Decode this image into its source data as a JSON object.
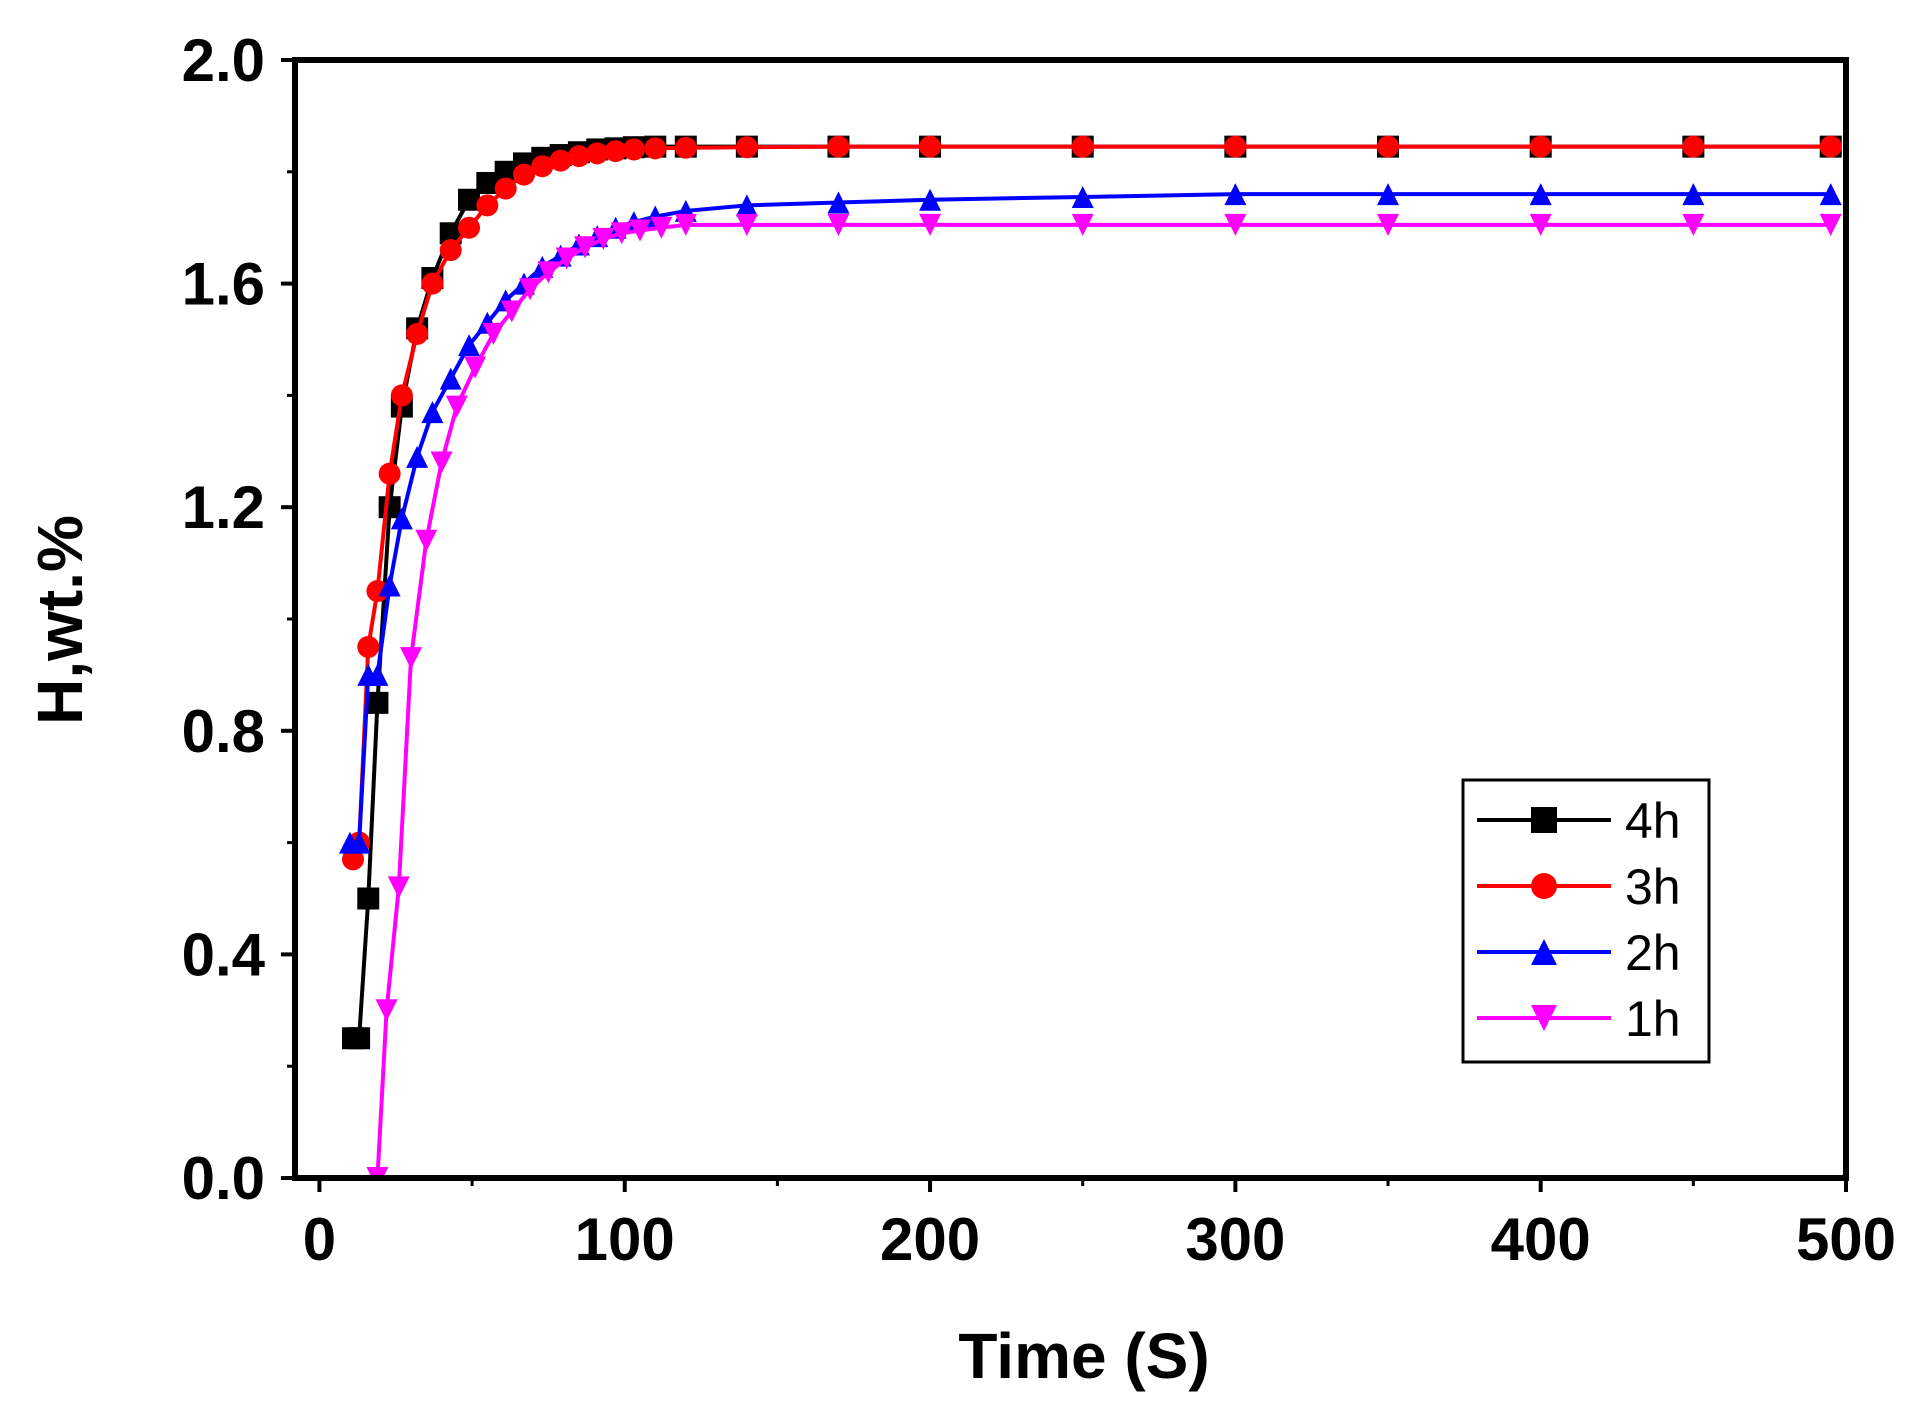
{
  "chart_data": {
    "type": "line",
    "title": "",
    "xlabel": "Time (S)",
    "ylabel": "H,wt.%",
    "xlim": [
      -8,
      500
    ],
    "ylim": [
      0.0,
      2.0
    ],
    "xticks": [
      0,
      100,
      200,
      300,
      400,
      500
    ],
    "yticks": [
      0.0,
      0.4,
      0.8,
      1.2,
      1.6,
      2.0
    ],
    "xtick_labels": [
      "0",
      "100",
      "200",
      "300",
      "400",
      "500"
    ],
    "ytick_labels": [
      "0.0",
      "0.4",
      "0.8",
      "1.2",
      "1.6",
      "2.0"
    ],
    "grid": false,
    "legend_position": "lower-right",
    "series": [
      {
        "name": "4h",
        "color": "#000000",
        "marker": "square",
        "x": [
          11,
          13,
          16,
          19,
          23,
          27,
          32,
          37,
          43,
          49,
          55,
          61,
          67,
          73,
          79,
          85,
          91,
          97,
          103,
          110,
          120,
          140,
          170,
          200,
          250,
          300,
          350,
          400,
          450,
          495
        ],
        "y": [
          0.25,
          0.25,
          0.5,
          0.85,
          1.2,
          1.38,
          1.52,
          1.61,
          1.69,
          1.75,
          1.78,
          1.8,
          1.815,
          1.825,
          1.83,
          1.835,
          1.84,
          1.842,
          1.844,
          1.845,
          1.845,
          1.845,
          1.845,
          1.845,
          1.845,
          1.845,
          1.845,
          1.845,
          1.845,
          1.845
        ]
      },
      {
        "name": "3h",
        "color": "#ff0000",
        "marker": "circle",
        "x": [
          11,
          13,
          16,
          19,
          23,
          27,
          32,
          37,
          43,
          49,
          55,
          61,
          67,
          73,
          79,
          85,
          91,
          97,
          103,
          110,
          120,
          140,
          170,
          200,
          250,
          300,
          350,
          400,
          450,
          495
        ],
        "y": [
          0.57,
          0.6,
          0.95,
          1.05,
          1.26,
          1.4,
          1.51,
          1.6,
          1.66,
          1.7,
          1.74,
          1.77,
          1.795,
          1.81,
          1.82,
          1.828,
          1.833,
          1.837,
          1.84,
          1.842,
          1.843,
          1.844,
          1.845,
          1.845,
          1.845,
          1.845,
          1.845,
          1.845,
          1.845,
          1.845
        ]
      },
      {
        "name": "2h",
        "color": "#0000ff",
        "marker": "triangle-up",
        "x": [
          10,
          13,
          16,
          19,
          23,
          27,
          32,
          37,
          43,
          49,
          55,
          61,
          67,
          73,
          79,
          85,
          91,
          97,
          103,
          110,
          120,
          140,
          170,
          200,
          250,
          300,
          350,
          400,
          450,
          495
        ],
        "y": [
          0.6,
          0.6,
          0.9,
          0.9,
          1.06,
          1.18,
          1.29,
          1.37,
          1.43,
          1.49,
          1.53,
          1.57,
          1.6,
          1.63,
          1.65,
          1.67,
          1.685,
          1.7,
          1.71,
          1.72,
          1.73,
          1.74,
          1.745,
          1.75,
          1.755,
          1.76,
          1.76,
          1.76,
          1.76,
          1.76
        ]
      },
      {
        "name": "1h",
        "color": "#ff00ff",
        "marker": "triangle-down",
        "x": [
          19,
          22,
          26,
          30,
          35,
          40,
          45,
          51,
          57,
          63,
          69,
          75,
          81,
          87,
          93,
          99,
          105,
          112,
          120,
          140,
          170,
          200,
          250,
          300,
          350,
          400,
          450,
          495
        ],
        "y": [
          0.0,
          0.3,
          0.52,
          0.93,
          1.14,
          1.28,
          1.38,
          1.45,
          1.51,
          1.55,
          1.59,
          1.62,
          1.645,
          1.665,
          1.68,
          1.69,
          1.695,
          1.7,
          1.705,
          1.705,
          1.705,
          1.705,
          1.705,
          1.705,
          1.705,
          1.705,
          1.705,
          1.705
        ]
      }
    ]
  }
}
